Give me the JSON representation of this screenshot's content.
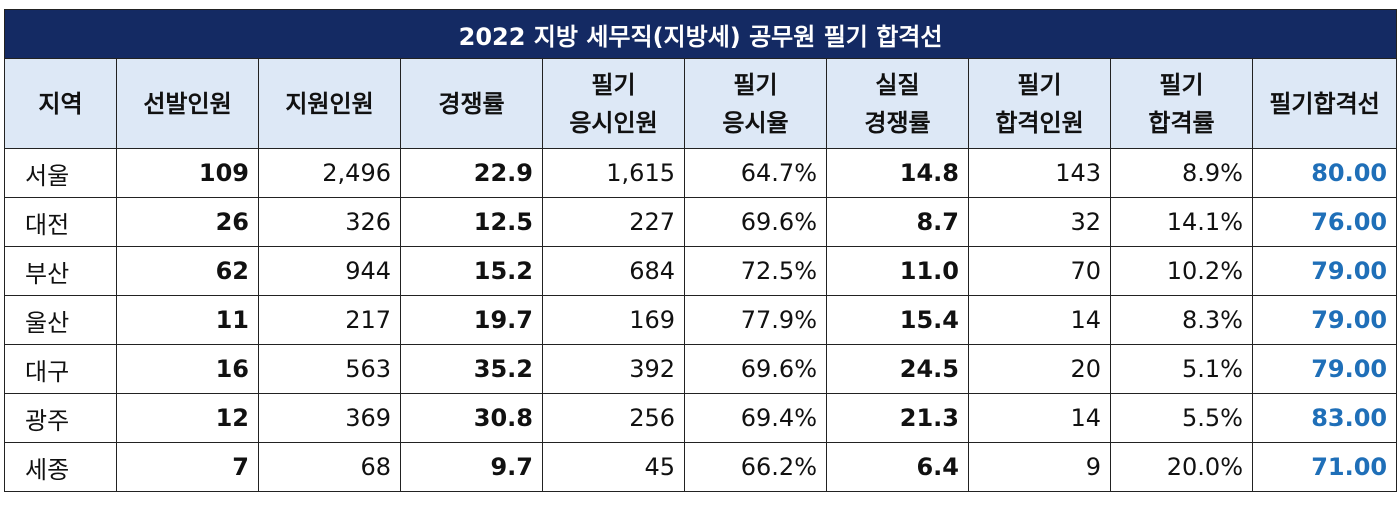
{
  "title": "2022 지방 세무직(지방세) 공무원 필기 합격선",
  "headers": [
    [
      "지역"
    ],
    [
      "선발인원"
    ],
    [
      "지원인원"
    ],
    [
      "경쟁률"
    ],
    [
      "필기",
      "응시인원"
    ],
    [
      "필기",
      "응시율"
    ],
    [
      "실질",
      "경쟁률"
    ],
    [
      "필기",
      "합격인원"
    ],
    [
      "필기",
      "합격률"
    ],
    [
      "필기합격선"
    ]
  ],
  "rows": [
    [
      "서울",
      "109",
      "2,496",
      "22.9",
      "1,615",
      "64.7%",
      "14.8",
      "143",
      "8.9%",
      "80.00"
    ],
    [
      "대전",
      "26",
      "326",
      "12.5",
      "227",
      "69.6%",
      "8.7",
      "32",
      "14.1%",
      "76.00"
    ],
    [
      "부산",
      "62",
      "944",
      "15.2",
      "684",
      "72.5%",
      "11.0",
      "70",
      "10.2%",
      "79.00"
    ],
    [
      "울산",
      "11",
      "217",
      "19.7",
      "169",
      "77.9%",
      "15.4",
      "14",
      "8.3%",
      "79.00"
    ],
    [
      "대구",
      "16",
      "563",
      "35.2",
      "392",
      "69.6%",
      "24.5",
      "20",
      "5.1%",
      "79.00"
    ],
    [
      "광주",
      "12",
      "369",
      "30.8",
      "256",
      "69.4%",
      "21.3",
      "14",
      "5.5%",
      "83.00"
    ],
    [
      "세종",
      "7",
      "68",
      "9.7",
      "45",
      "66.2%",
      "6.4",
      "9",
      "20.0%",
      "71.00"
    ]
  ],
  "colors": {
    "title_bg": "#142a63",
    "header_bg": "#dde8f6",
    "cutoff_text": "#1f6fb8"
  }
}
